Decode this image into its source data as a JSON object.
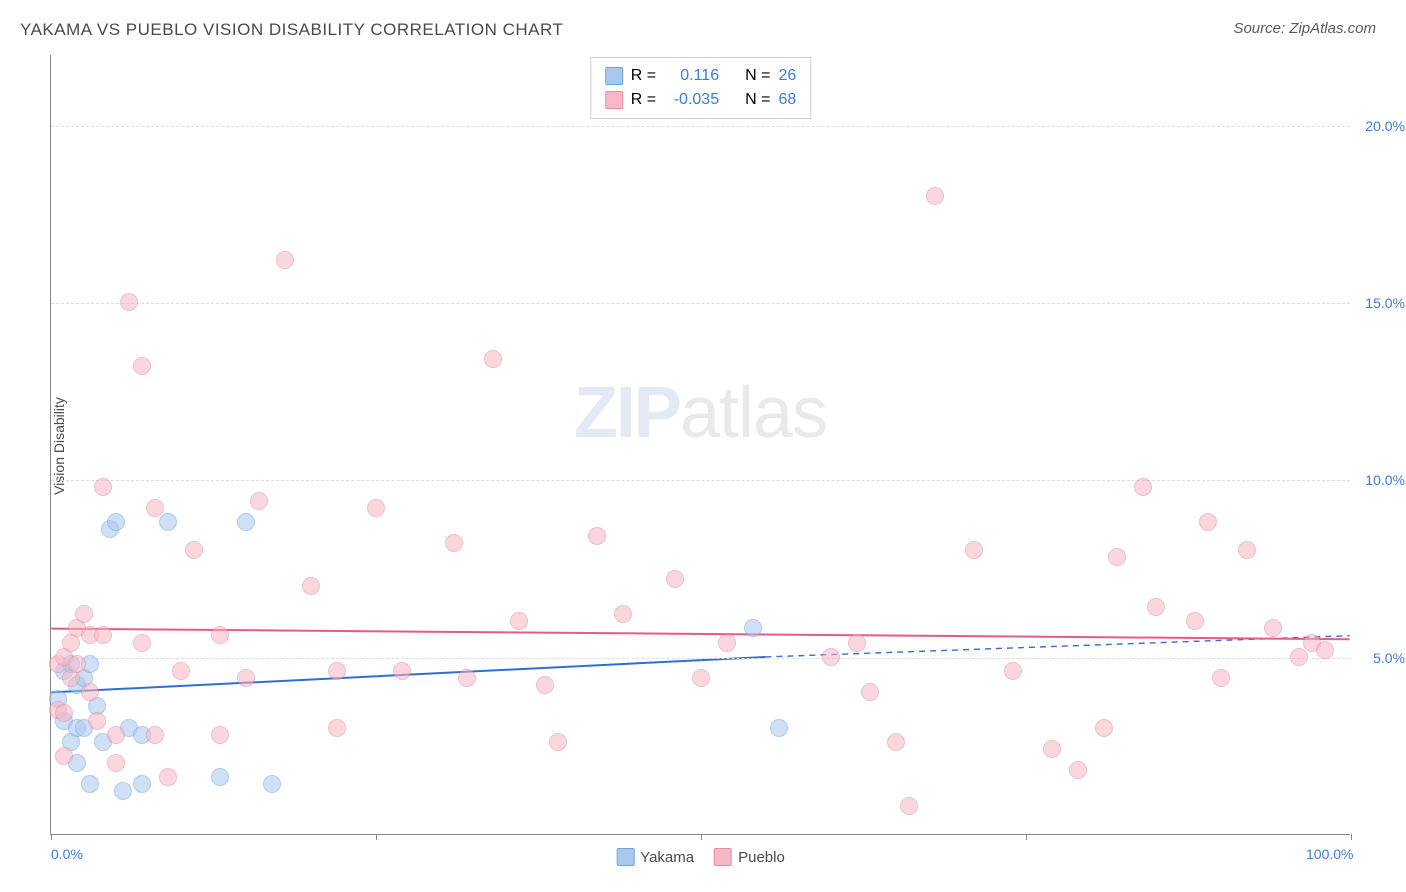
{
  "title": "YAKAMA VS PUEBLO VISION DISABILITY CORRELATION CHART",
  "source": "Source: ZipAtlas.com",
  "ylabel": "Vision Disability",
  "watermark": {
    "zip": "ZIP",
    "atlas": "atlas"
  },
  "chart": {
    "type": "scatter",
    "xlim": [
      0,
      100
    ],
    "ylim": [
      0,
      22
    ],
    "yticks": [
      5.0,
      10.0,
      15.0,
      20.0
    ],
    "ytick_labels": [
      "5.0%",
      "10.0%",
      "15.0%",
      "20.0%"
    ],
    "xticks": [
      0,
      25,
      50,
      75,
      100
    ],
    "xtick_labels_shown": {
      "0": "0.0%",
      "100": "100.0%"
    },
    "background_color": "#ffffff",
    "grid_color": "#dddddd",
    "axis_color": "#888888",
    "marker_radius": 9,
    "marker_stroke_width": 1.2,
    "series": [
      {
        "name": "Yakama",
        "R": 0.116,
        "N": 26,
        "fill": "#a8c8ec",
        "stroke": "#6fa3e0",
        "fill_opacity": 0.55,
        "trend": {
          "x1": 0,
          "y1": 4.0,
          "x2": 55,
          "y2": 5.0,
          "dash_x2": 100,
          "dash_y2": 5.6,
          "color": "#2f6fd0",
          "width": 2
        },
        "points": [
          [
            0.5,
            3.8
          ],
          [
            1,
            3.2
          ],
          [
            1,
            4.6
          ],
          [
            1.5,
            4.8
          ],
          [
            1.5,
            2.6
          ],
          [
            2,
            4.2
          ],
          [
            2,
            2.0
          ],
          [
            2,
            3.0
          ],
          [
            2.5,
            4.4
          ],
          [
            2.5,
            3.0
          ],
          [
            3,
            1.4
          ],
          [
            3,
            4.8
          ],
          [
            3.5,
            3.6
          ],
          [
            4,
            2.6
          ],
          [
            4.5,
            8.6
          ],
          [
            5,
            8.8
          ],
          [
            5.5,
            1.2
          ],
          [
            6,
            3.0
          ],
          [
            7,
            2.8
          ],
          [
            7,
            1.4
          ],
          [
            9,
            8.8
          ],
          [
            13,
            1.6
          ],
          [
            15,
            8.8
          ],
          [
            17,
            1.4
          ],
          [
            54,
            5.8
          ],
          [
            56,
            3.0
          ]
        ]
      },
      {
        "name": "Pueblo",
        "R": -0.035,
        "N": 68,
        "fill": "#f6b8c6",
        "stroke": "#e98aa3",
        "fill_opacity": 0.55,
        "trend": {
          "x1": 0,
          "y1": 5.8,
          "x2": 100,
          "y2": 5.5,
          "color": "#e55a8a",
          "width": 2
        },
        "points": [
          [
            0.5,
            3.5
          ],
          [
            0.5,
            4.8
          ],
          [
            1,
            2.2
          ],
          [
            1,
            5.0
          ],
          [
            1,
            3.4
          ],
          [
            1.5,
            4.4
          ],
          [
            1.5,
            5.4
          ],
          [
            2,
            5.8
          ],
          [
            2,
            4.8
          ],
          [
            2.5,
            6.2
          ],
          [
            3,
            4.0
          ],
          [
            3,
            5.6
          ],
          [
            3.5,
            3.2
          ],
          [
            4,
            9.8
          ],
          [
            4,
            5.6
          ],
          [
            5,
            2.8
          ],
          [
            5,
            2.0
          ],
          [
            6,
            15.0
          ],
          [
            7,
            13.2
          ],
          [
            7,
            5.4
          ],
          [
            8,
            9.2
          ],
          [
            8,
            2.8
          ],
          [
            9,
            1.6
          ],
          [
            10,
            4.6
          ],
          [
            11,
            8.0
          ],
          [
            13,
            5.6
          ],
          [
            13,
            2.8
          ],
          [
            15,
            4.4
          ],
          [
            16,
            9.4
          ],
          [
            18,
            16.2
          ],
          [
            20,
            7.0
          ],
          [
            22,
            4.6
          ],
          [
            22,
            3.0
          ],
          [
            25,
            9.2
          ],
          [
            27,
            4.6
          ],
          [
            31,
            8.2
          ],
          [
            32,
            4.4
          ],
          [
            34,
            13.4
          ],
          [
            36,
            6.0
          ],
          [
            38,
            4.2
          ],
          [
            39,
            2.6
          ],
          [
            42,
            8.4
          ],
          [
            44,
            6.2
          ],
          [
            48,
            7.2
          ],
          [
            50,
            4.4
          ],
          [
            52,
            5.4
          ],
          [
            60,
            5.0
          ],
          [
            62,
            5.4
          ],
          [
            63,
            4.0
          ],
          [
            65,
            2.6
          ],
          [
            66,
            0.8
          ],
          [
            68,
            18.0
          ],
          [
            71,
            8.0
          ],
          [
            74,
            4.6
          ],
          [
            77,
            2.4
          ],
          [
            79,
            1.8
          ],
          [
            81,
            3.0
          ],
          [
            82,
            7.8
          ],
          [
            84,
            9.8
          ],
          [
            85,
            6.4
          ],
          [
            88,
            6.0
          ],
          [
            89,
            8.8
          ],
          [
            90,
            4.4
          ],
          [
            92,
            8.0
          ],
          [
            94,
            5.8
          ],
          [
            96,
            5.0
          ],
          [
            97,
            5.4
          ],
          [
            98,
            5.2
          ]
        ]
      }
    ]
  },
  "legend_top_labels": {
    "R": "R =",
    "N": "N ="
  },
  "legend_bottom": [
    {
      "name": "Yakama",
      "fill": "#a8c8ec",
      "stroke": "#6fa3e0"
    },
    {
      "name": "Pueblo",
      "fill": "#f6b8c6",
      "stroke": "#e98aa3"
    }
  ]
}
